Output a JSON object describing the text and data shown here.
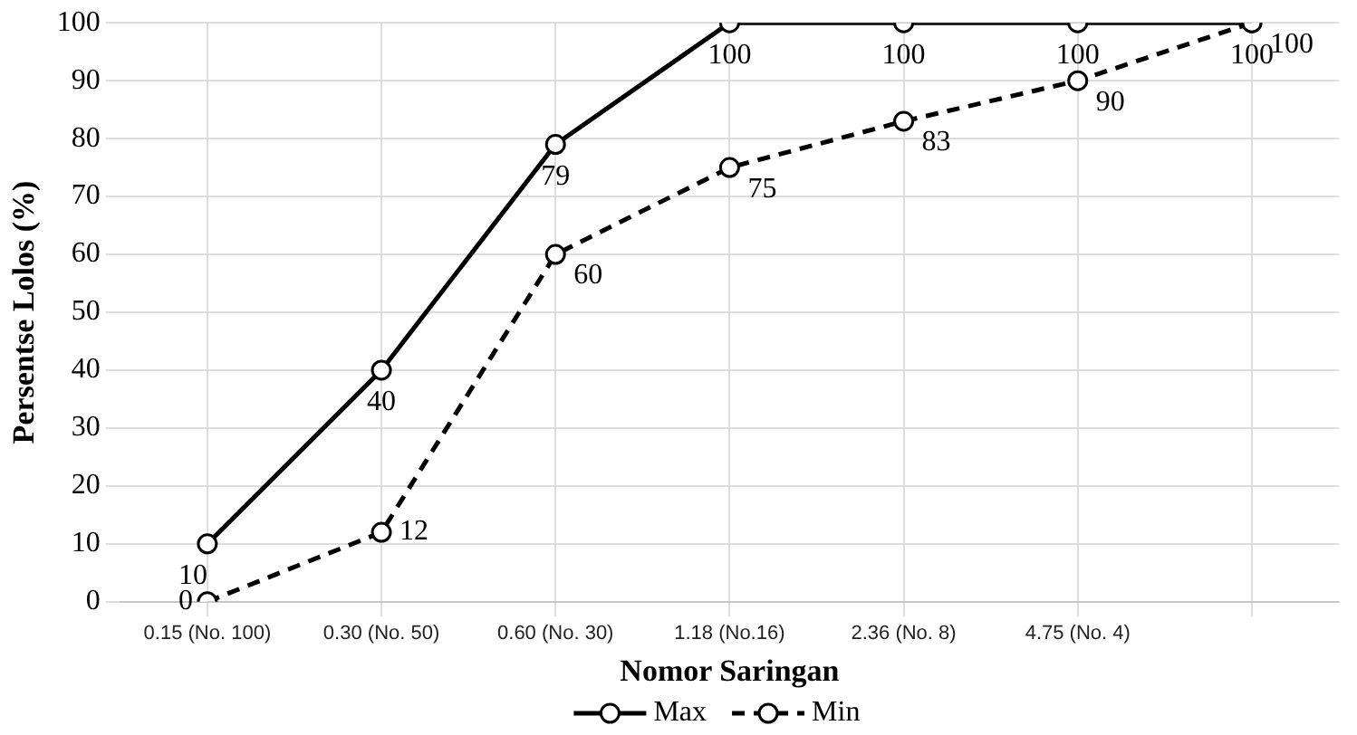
{
  "chart_data": {
    "type": "line",
    "xlabel": "Nomor Saringan",
    "ylabel": "Persentse Lolos (%)",
    "categories": [
      "0.15 (No. 100)",
      "0.30 (No. 50)",
      "0.60 (No. 30)",
      "1.18 (No.16)",
      "2.36 (No. 8)",
      "4.75 (No. 4)",
      null
    ],
    "series": [
      {
        "name": "Max",
        "color": "#000000",
        "values": [
          10,
          40,
          79,
          100,
          100,
          100,
          100
        ],
        "line_style": "solid"
      },
      {
        "name": "Min",
        "color": "#000000",
        "values": [
          0,
          12,
          60,
          75,
          83,
          90,
          100
        ],
        "line_style": "dashed"
      }
    ],
    "ylim": [
      0,
      100
    ],
    "yticks": [
      0,
      10,
      20,
      30,
      40,
      50,
      60,
      70,
      80,
      90,
      100
    ],
    "grid": true,
    "legend": "bottom",
    "marker": "circle",
    "data_labels": true
  }
}
